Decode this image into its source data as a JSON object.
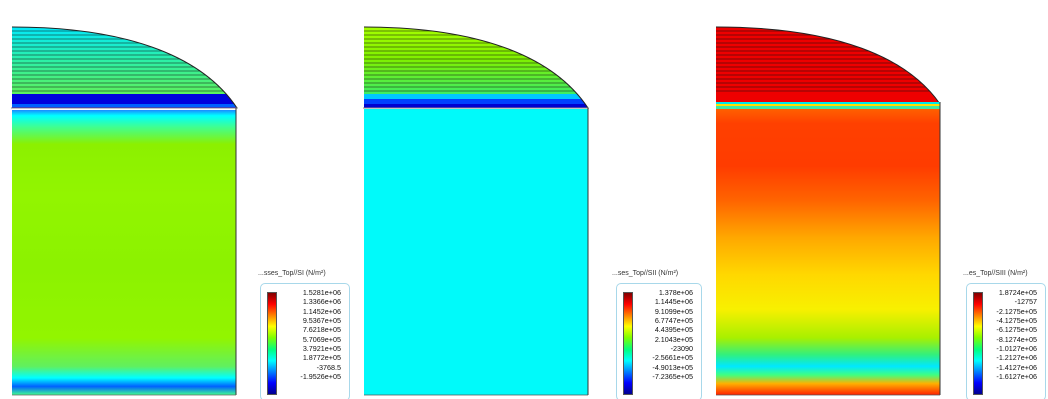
{
  "panels": [
    {
      "id": "p1",
      "legend_title": "...sses_Top//SI (N/m²)",
      "legend_values": [
        "1.5281e+06",
        "1.3366e+06",
        "1.1452e+06",
        "9.5367e+05",
        "7.6218e+05",
        "5.7069e+05",
        "3.7921e+05",
        "1.8772e+05",
        "-3768.5",
        "-1.9526e+05"
      ]
    },
    {
      "id": "p2",
      "legend_title": "...ses_Top//SII (N/m²)",
      "legend_values": [
        "1.378e+06",
        "1.1445e+06",
        "9.1099e+05",
        "6.7747e+05",
        "4.4395e+05",
        "2.1043e+05",
        "-23090",
        "-2.5661e+05",
        "-4.9013e+05",
        "-7.2365e+05"
      ]
    },
    {
      "id": "p3",
      "legend_title": "...es_Top//SIII (N/m²)",
      "legend_values": [
        "1.8724e+05",
        "-12757",
        "-2.1275e+05",
        "-4.1275e+05",
        "-6.1275e+05",
        "-8.1274e+05",
        "-1.0127e+06",
        "-1.2127e+06",
        "-1.4127e+06",
        "-1.6127e+06"
      ]
    }
  ],
  "colormap": [
    "#00008f",
    "#0000ff",
    "#0080ff",
    "#00ffff",
    "#00ff80",
    "#80ff00",
    "#ffff00",
    "#ff8000",
    "#ff0000",
    "#800000"
  ]
}
